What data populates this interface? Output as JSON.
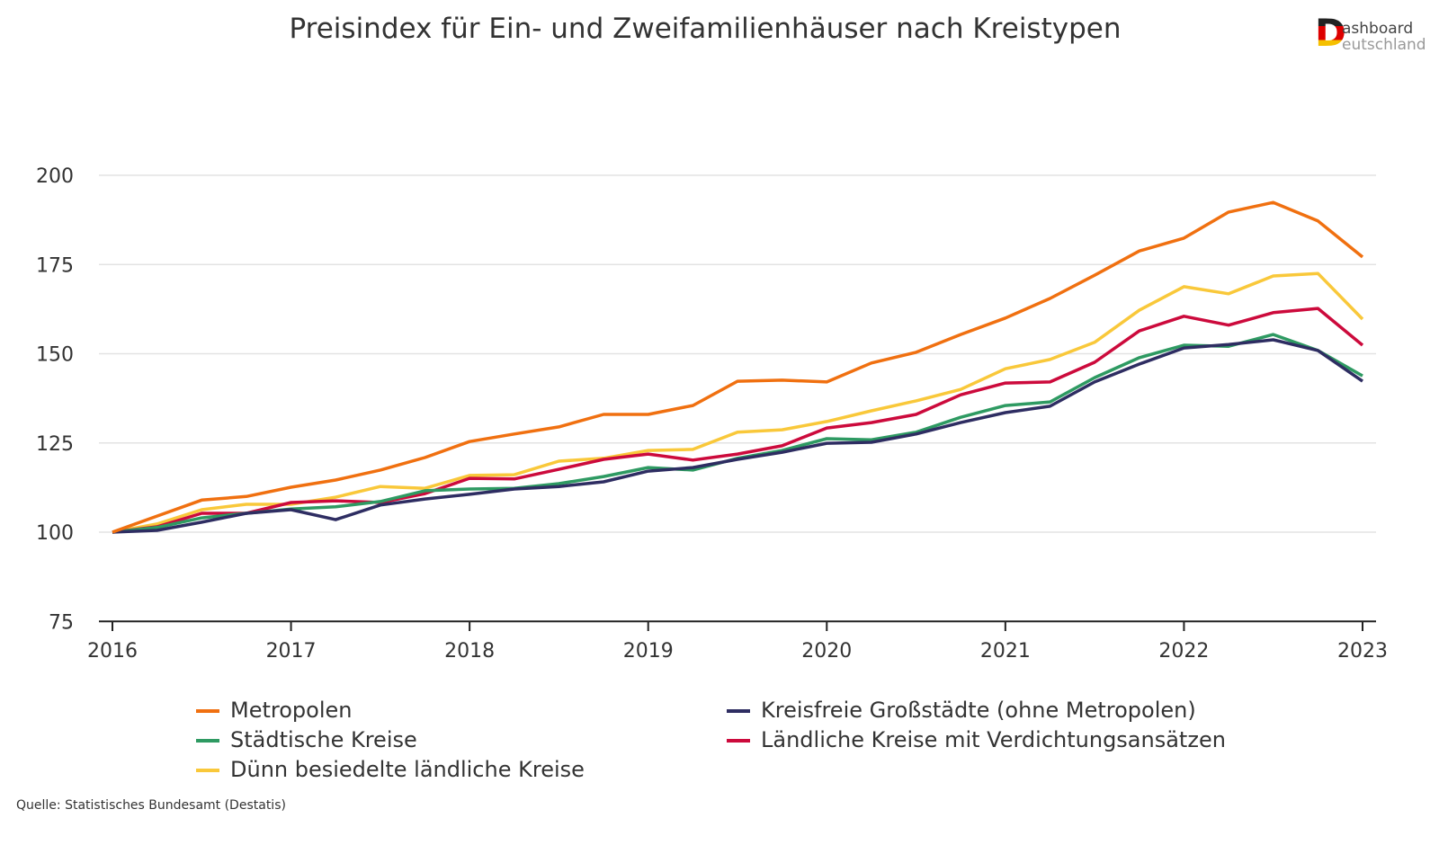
{
  "title": "Preisindex für Ein- und Zweifamilienhäuser nach Kreistypen",
  "logo": {
    "line1": "ashboard",
    "line2": "eutschland",
    "initial": "D"
  },
  "source": "Quelle: Statistisches Bundesamt (Destatis)",
  "chart_data": {
    "type": "line",
    "title": "Preisindex für Ein- und Zweifamilienhäuser nach Kreistypen",
    "xlabel": "",
    "ylabel": "",
    "x": [
      "2016Q1",
      "2016Q2",
      "2016Q3",
      "2016Q4",
      "2017Q1",
      "2017Q2",
      "2017Q3",
      "2017Q4",
      "2018Q1",
      "2018Q2",
      "2018Q3",
      "2018Q4",
      "2019Q1",
      "2019Q2",
      "2019Q3",
      "2019Q4",
      "2020Q1",
      "2020Q2",
      "2020Q3",
      "2020Q4",
      "2021Q1",
      "2021Q2",
      "2021Q3",
      "2021Q4",
      "2022Q1",
      "2022Q2",
      "2022Q3",
      "2022Q4",
      "2023Q1"
    ],
    "xticks": [
      "2016",
      "2017",
      "2018",
      "2019",
      "2020",
      "2021",
      "2022",
      "2023"
    ],
    "yticks": [
      75,
      100,
      125,
      150,
      175,
      200
    ],
    "ylim": [
      75,
      205
    ],
    "grid": true,
    "legend_position": "bottom",
    "series": [
      {
        "name": "Metropolen",
        "color": "#f07010",
        "values": [
          100,
          104.5,
          109,
          110,
          112.6,
          114.6,
          117.4,
          120.9,
          125.4,
          127.5,
          129.5,
          133,
          133,
          135.5,
          142.3,
          142.6,
          142.1,
          147.4,
          150.4,
          155.4,
          160,
          165.5,
          172,
          178.8,
          182.4,
          189.7,
          192.4,
          187.2,
          177.1
        ]
      },
      {
        "name": "Kreisfreie Großstädte (ohne Metropolen)",
        "color": "#2e2d62",
        "values": [
          100,
          100.5,
          102.8,
          105.3,
          106.3,
          103.5,
          107.6,
          109.3,
          110.6,
          112.1,
          112.8,
          114.1,
          117.1,
          118.1,
          120.4,
          122.4,
          124.9,
          125.2,
          127.5,
          130.7,
          133.5,
          135.3,
          142.1,
          147.1,
          151.6,
          152.6,
          153.9,
          150.9,
          142.3
        ]
      },
      {
        "name": "Städtische Kreise",
        "color": "#2e9a62",
        "values": [
          100,
          101.3,
          104,
          105.3,
          106.5,
          107.1,
          108.6,
          111.6,
          112.1,
          112.3,
          113.6,
          115.6,
          118.1,
          117.4,
          120.7,
          122.9,
          126.2,
          125.9,
          128,
          132.2,
          135.5,
          136.5,
          143.3,
          148.9,
          152.4,
          152.1,
          155.4,
          150.9,
          143.8
        ]
      },
      {
        "name": "Ländliche Kreise mit Verdichtungsansätzen",
        "color": "#cc0a3c",
        "values": [
          100,
          101.5,
          105.3,
          105.3,
          108.3,
          108.8,
          108.3,
          110.8,
          115.1,
          114.9,
          117.6,
          120.4,
          121.9,
          120.2,
          121.9,
          124.2,
          129.2,
          130.7,
          133,
          138.5,
          141.8,
          142.1,
          147.6,
          156.4,
          160.5,
          158,
          161.5,
          162.7,
          152.4
        ]
      },
      {
        "name": "Dünn besiedelte ländliche Kreise",
        "color": "#f9c83a",
        "values": [
          100,
          102.3,
          106.3,
          107.8,
          107.8,
          109.8,
          112.8,
          112.3,
          115.9,
          116.1,
          119.9,
          120.7,
          122.9,
          123.2,
          128,
          128.7,
          131,
          134,
          136.8,
          140,
          145.8,
          148.4,
          153.2,
          162.2,
          168.8,
          166.8,
          171.8,
          172.5,
          159.7
        ]
      }
    ]
  }
}
